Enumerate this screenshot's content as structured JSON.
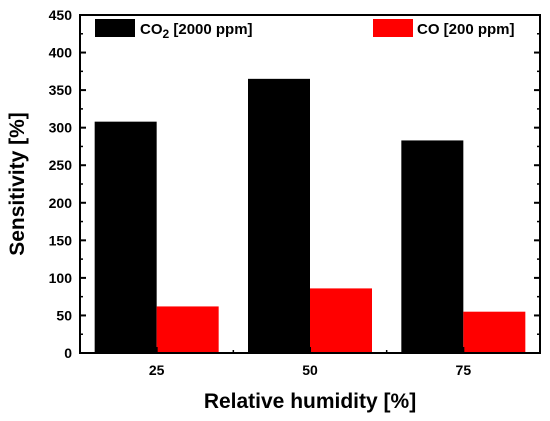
{
  "chart_data": {
    "type": "bar",
    "categories": [
      "25",
      "50",
      "75"
    ],
    "series": [
      {
        "name": "CO2 [2000 ppm]",
        "values": [
          308,
          365,
          283
        ],
        "color": "#000000"
      },
      {
        "name": "CO [200 ppm]",
        "values": [
          62,
          86,
          55
        ],
        "color": "#ff0000"
      }
    ],
    "xlabel": "Relative humidity [%]",
    "ylabel": "Sensitivity [%]",
    "ylim": [
      0,
      450
    ],
    "yticks": [
      0,
      50,
      100,
      150,
      200,
      250,
      300,
      350,
      400,
      450
    ],
    "grid": false,
    "legend_position": "top"
  },
  "legend": {
    "co2_main": "CO",
    "co2_sub": "2",
    "co2_rest": " [2000 ppm]",
    "co": "CO [200 ppm]"
  }
}
